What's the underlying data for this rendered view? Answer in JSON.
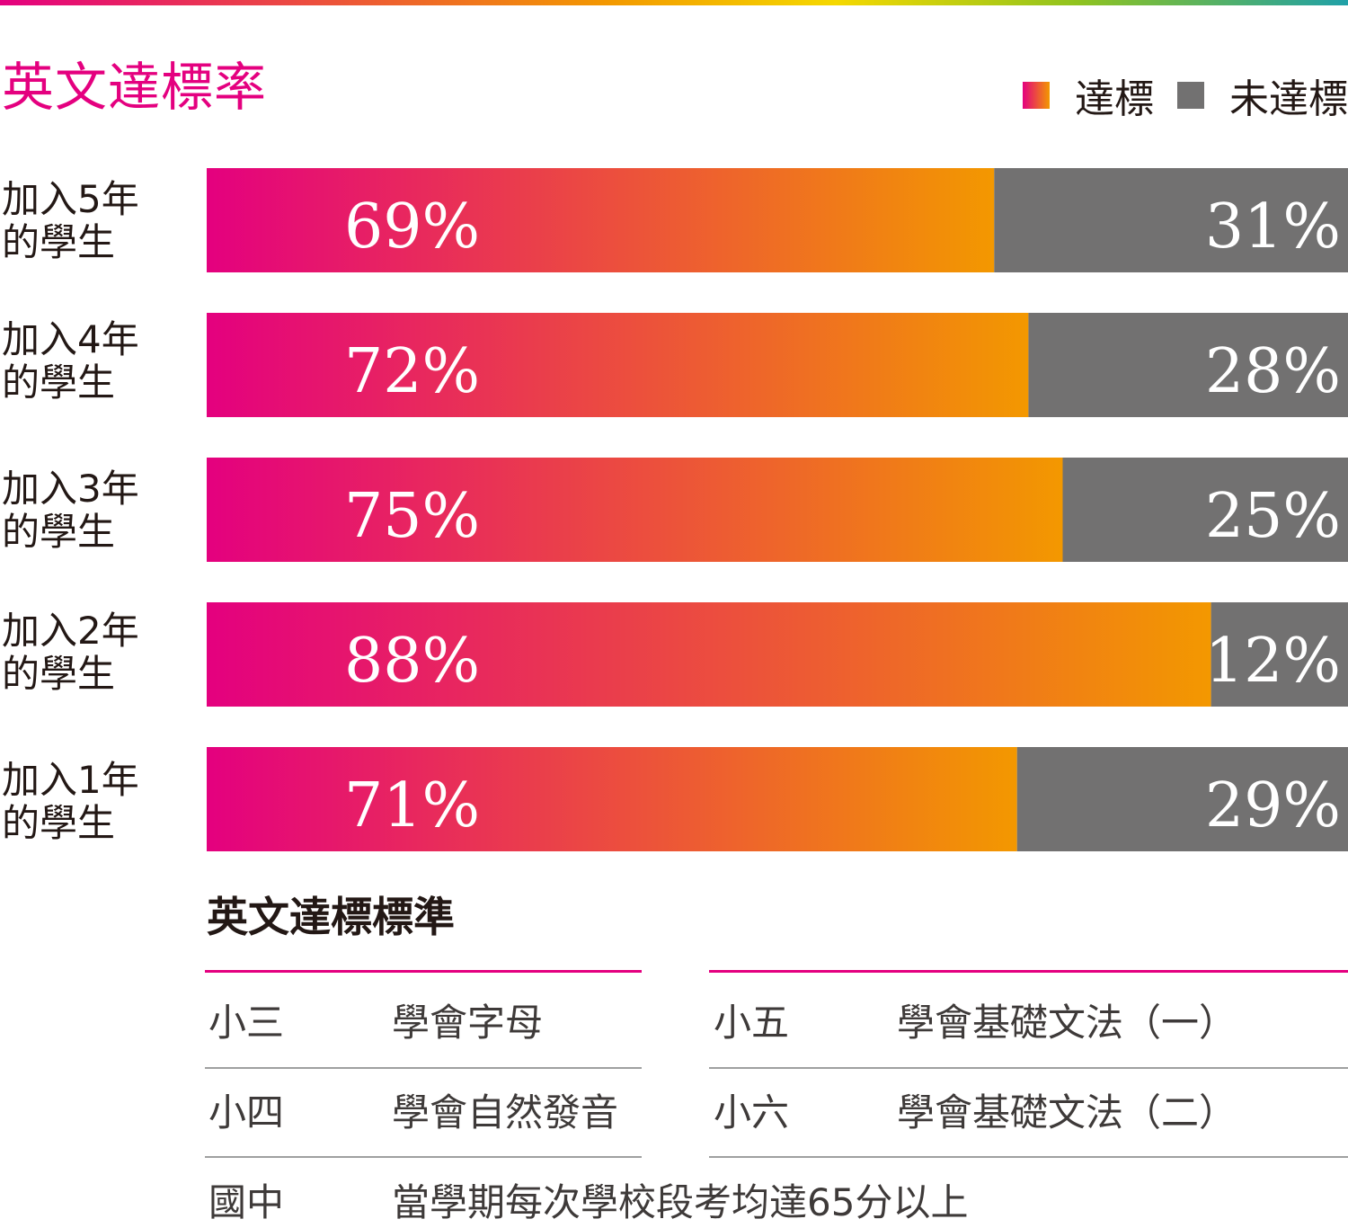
{
  "title": "英文達標率",
  "legend": {
    "met_label": "達標",
    "not_met_label": "未達標",
    "met_colors": [
      "#e4007f",
      "#f39800"
    ],
    "not_met_color": "#727171"
  },
  "rows": [
    {
      "line1": "加入5年",
      "line2": "的學生"
    },
    {
      "line1": "加入4年",
      "line2": "的學生"
    },
    {
      "line1": "加入3年",
      "line2": "的學生"
    },
    {
      "line1": "加入2年",
      "line2": "的學生"
    },
    {
      "line1": "加入1年",
      "line2": "的學生"
    }
  ],
  "chart_data": {
    "type": "bar",
    "orientation": "horizontal",
    "stacked": true,
    "title": "英文達標率",
    "categories": [
      "加入5年的學生",
      "加入4年的學生",
      "加入3年的學生",
      "加入2年的學生",
      "加入1年的學生"
    ],
    "series": [
      {
        "name": "達標",
        "values": [
          69,
          72,
          75,
          88,
          71
        ],
        "labels": [
          "69%",
          "72%",
          "75%",
          "88%",
          "71%"
        ]
      },
      {
        "name": "未達標",
        "values": [
          31,
          28,
          25,
          12,
          29
        ],
        "labels": [
          "31%",
          "28%",
          "25%",
          "12%",
          "29%"
        ]
      }
    ],
    "xlim": [
      0,
      100
    ],
    "legend_position": "top-right",
    "grid": false
  },
  "standards": {
    "title": "英文達標標準",
    "items": [
      {
        "grade": "小三",
        "desc": "學會字母"
      },
      {
        "grade": "小四",
        "desc": "學會自然發音"
      },
      {
        "grade": "小五",
        "desc": "學會基礎文法（一）"
      },
      {
        "grade": "小六",
        "desc": "學會基礎文法（二）"
      },
      {
        "grade": "國中",
        "desc": "當學期每次學校段考均達65分以上"
      }
    ]
  }
}
